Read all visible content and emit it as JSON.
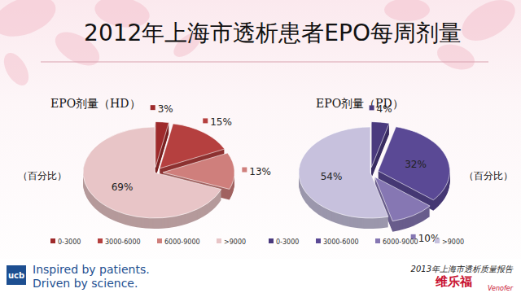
{
  "slide": {
    "title": "2012年上海市透析患者EPO每周剂量",
    "source": "2013年上海市透析质量报告",
    "tagline": [
      "Inspired by patients.",
      "Driven by science."
    ],
    "logo": "ucb",
    "brand": "维乐福",
    "brand_en": "Venofer"
  },
  "chart_data": [
    {
      "type": "pie",
      "title": "EPO剂量（HD）",
      "subtitle": "（百分比）",
      "categories": [
        "0-3000",
        "3000-6000",
        "6000-9000",
        ">9000"
      ],
      "values": [
        3,
        15,
        13,
        69
      ],
      "value_labels": [
        "3%",
        "15%",
        "13%",
        "69%"
      ],
      "colors": [
        "#9e2a2b",
        "#b5403f",
        "#cf7f7c",
        "#e8c5c7"
      ],
      "data_labels": true,
      "legend": "bottom"
    },
    {
      "type": "pie",
      "title": "EPO剂量（PD）",
      "subtitle": "（百分比）",
      "categories": [
        "0-3000",
        "3000-6000",
        "6000-9000",
        ">9000"
      ],
      "values": [
        4,
        32,
        10,
        54
      ],
      "value_labels": [
        "4%",
        "32%",
        "10%",
        "54%"
      ],
      "colors": [
        "#4a3a7e",
        "#5a4995",
        "#8677b3",
        "#c7c1dd"
      ],
      "data_labels": true,
      "legend": "bottom"
    }
  ]
}
